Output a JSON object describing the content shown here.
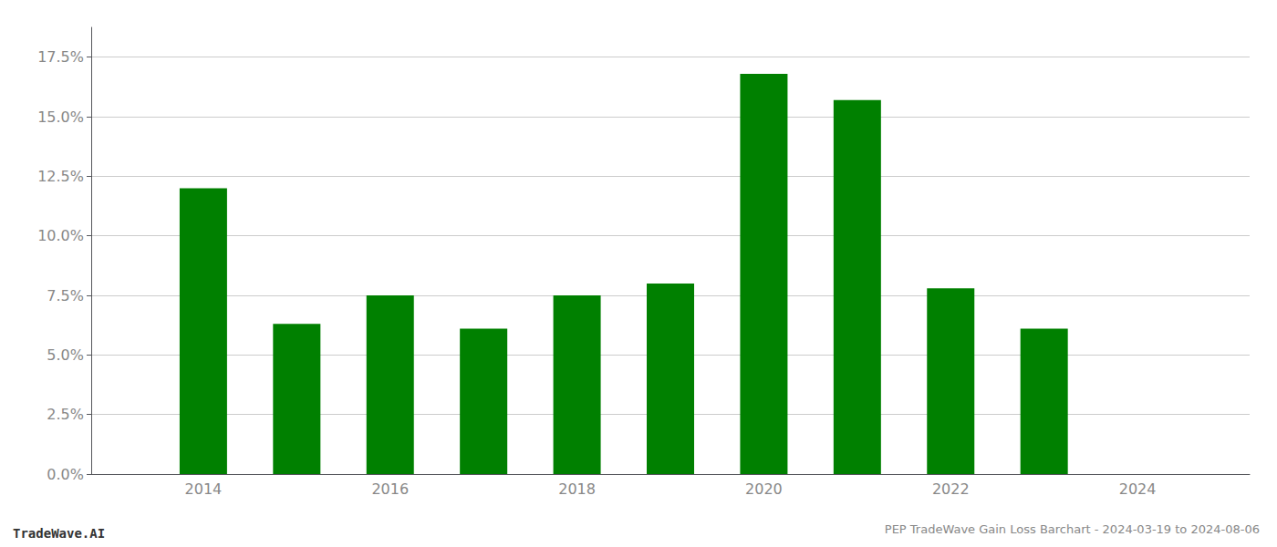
{
  "chart_data": {
    "type": "bar",
    "title": "PEP TradeWave Gain Loss Barchart - 2024-03-19 to 2024-08-06",
    "annotations": [
      "TradeWave.AI"
    ],
    "x": [
      2014,
      2015,
      2016,
      2017,
      2018,
      2019,
      2020,
      2021,
      2022,
      2023
    ],
    "values": [
      0.12,
      0.063,
      0.075,
      0.061,
      0.075,
      0.08,
      0.168,
      0.157,
      0.078,
      0.061
    ],
    "color": "#008000",
    "xlim": [
      2012.8,
      2025.2
    ],
    "xticks": [
      2014,
      2016,
      2018,
      2020,
      2022,
      2024
    ],
    "ylim": [
      0,
      0.1875
    ],
    "yticks": [
      {
        "value": 0.0,
        "label": "0.0%"
      },
      {
        "value": 0.025,
        "label": "2.5%"
      },
      {
        "value": 0.05,
        "label": "5.0%"
      },
      {
        "value": 0.075,
        "label": "7.5%"
      },
      {
        "value": 0.1,
        "label": "10.0%"
      },
      {
        "value": 0.125,
        "label": "12.5%"
      },
      {
        "value": 0.15,
        "label": "15.0%"
      },
      {
        "value": 0.175,
        "label": "17.5%"
      }
    ],
    "grid": true
  }
}
